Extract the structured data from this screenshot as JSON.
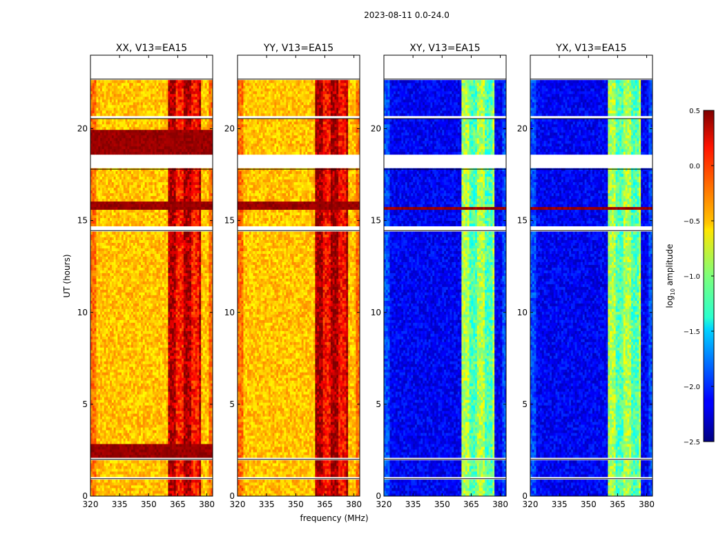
{
  "suptitle": "2023-08-11 0.0-24.0",
  "xlabel": "frequency (MHz)",
  "ylabel": "UT (hours)",
  "colorbar": {
    "label_prefix": "log",
    "label_sub": "10",
    "label_suffix": " amplitude",
    "ticks": [
      0.5,
      0.0,
      -0.5,
      -1.0,
      -1.5,
      -2.0,
      -2.5
    ],
    "tick_labels": [
      "0.5",
      "0.0",
      "−0.5",
      "−1.0",
      "−1.5",
      "−2.0",
      "−2.5"
    ],
    "range": [
      -2.5,
      0.5
    ],
    "colormap": "jet"
  },
  "chart_data": [
    {
      "type": "heatmap",
      "title": "XX, V13=EA15",
      "xlim": [
        320,
        383
      ],
      "ylim": [
        0,
        24
      ],
      "xticks": [
        320,
        335,
        350,
        365,
        380
      ],
      "xtick_labels": [
        "320",
        "335",
        "350",
        "365",
        "380"
      ],
      "yticks": [
        0,
        5,
        10,
        15,
        20
      ],
      "ytick_labels": [
        "0",
        "5",
        "10",
        "15",
        "20"
      ],
      "base_value": -0.45,
      "rfi_band_mhz": [
        360,
        377
      ],
      "rfi_value": 0.2,
      "saturated_hours": [
        [
          2.1,
          2.8
        ],
        [
          15.6,
          16.0
        ],
        [
          18.6,
          20.0
        ]
      ],
      "flagged_hours": [
        [
          0.95,
          1.1
        ],
        [
          2.0,
          2.1
        ],
        [
          14.45,
          14.65
        ],
        [
          17.8,
          18.6
        ],
        [
          20.55,
          20.75
        ],
        [
          22.7,
          24.0
        ]
      ]
    },
    {
      "type": "heatmap",
      "title": "YY, V13=EA15",
      "xlim": [
        320,
        383
      ],
      "ylim": [
        0,
        24
      ],
      "xticks": [
        320,
        335,
        350,
        365,
        380
      ],
      "xtick_labels": [
        "320",
        "335",
        "350",
        "365",
        "380"
      ],
      "yticks": [
        0,
        5,
        10,
        15,
        20
      ],
      "ytick_labels": [
        "0",
        "5",
        "10",
        "15",
        "20"
      ],
      "base_value": -0.45,
      "rfi_band_mhz": [
        360,
        377
      ],
      "rfi_value": 0.25,
      "saturated_hours": [
        [
          15.6,
          16.0
        ]
      ],
      "flagged_hours": [
        [
          0.95,
          1.1
        ],
        [
          2.0,
          2.1
        ],
        [
          14.45,
          14.65
        ],
        [
          17.8,
          18.6
        ],
        [
          20.55,
          20.75
        ],
        [
          22.7,
          24.0
        ]
      ]
    },
    {
      "type": "heatmap",
      "title": "XY, V13=EA15",
      "xlim": [
        320,
        383
      ],
      "ylim": [
        0,
        24
      ],
      "xticks": [
        320,
        335,
        350,
        365,
        380
      ],
      "xtick_labels": [
        "320",
        "335",
        "350",
        "365",
        "380"
      ],
      "yticks": [
        0,
        5,
        10,
        15,
        20
      ],
      "ytick_labels": [
        "0",
        "5",
        "10",
        "15",
        "20"
      ],
      "base_value": -2.15,
      "rfi_band_mhz": [
        360,
        377
      ],
      "rfi_value": -1.0,
      "saturated_hours": [
        [
          15.6,
          15.8
        ]
      ],
      "flagged_hours": [
        [
          0.95,
          1.1
        ],
        [
          2.0,
          2.1
        ],
        [
          14.45,
          14.65
        ],
        [
          17.8,
          18.6
        ],
        [
          20.55,
          20.75
        ],
        [
          22.7,
          24.0
        ]
      ]
    },
    {
      "type": "heatmap",
      "title": "YX, V13=EA15",
      "xlim": [
        320,
        383
      ],
      "ylim": [
        0,
        24
      ],
      "xticks": [
        320,
        335,
        350,
        365,
        380
      ],
      "xtick_labels": [
        "320",
        "335",
        "350",
        "365",
        "380"
      ],
      "yticks": [
        0,
        5,
        10,
        15,
        20
      ],
      "ytick_labels": [
        "0",
        "5",
        "10",
        "15",
        "20"
      ],
      "base_value": -2.15,
      "rfi_band_mhz": [
        360,
        377
      ],
      "rfi_value": -1.0,
      "saturated_hours": [
        [
          15.6,
          15.8
        ]
      ],
      "flagged_hours": [
        [
          0.95,
          1.1
        ],
        [
          2.0,
          2.1
        ],
        [
          14.45,
          14.65
        ],
        [
          17.8,
          18.6
        ],
        [
          20.55,
          20.75
        ],
        [
          22.7,
          24.0
        ]
      ]
    }
  ]
}
